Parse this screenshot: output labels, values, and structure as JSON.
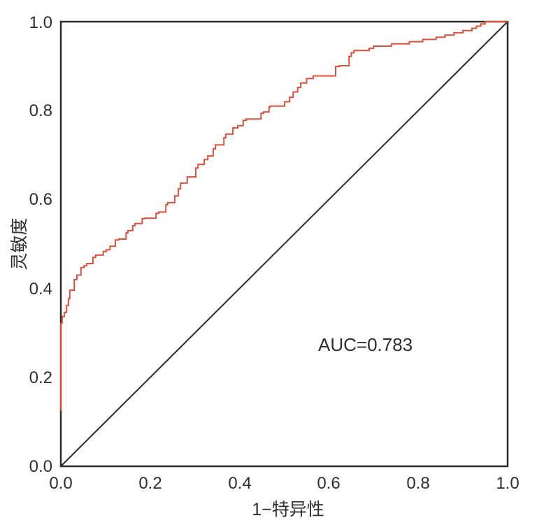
{
  "figure": {
    "background_color": "#ffffff",
    "axis_color": "#2a2a2a",
    "text_color": "#2e2e2e"
  },
  "chart_data": {
    "type": "line",
    "subtype": "roc-curve",
    "xlabel": "1−特异性",
    "ylabel": "灵敏度",
    "xlim": [
      0.0,
      1.0
    ],
    "ylim": [
      0.0,
      1.0
    ],
    "grid": false,
    "legend": "none",
    "x_tick_labels": [
      "0.0",
      "0.2",
      "0.4",
      "0.6",
      "0.8",
      "1.0"
    ],
    "y_tick_labels": [
      "0.0",
      "0.2",
      "0.4",
      "0.6",
      "0.8",
      "1.0"
    ],
    "x_ticks": [
      0.0,
      0.2,
      0.4,
      0.6,
      0.8,
      1.0
    ],
    "y_ticks": [
      0.0,
      0.2,
      0.4,
      0.6,
      0.8,
      1.0
    ],
    "annotation": {
      "text": "AUC=0.783",
      "x": 0.576,
      "y": 0.26
    },
    "auc_value": 0.783,
    "series": [
      {
        "name": "ROC curve",
        "color": "#e0513c",
        "line_width": 2,
        "step": true,
        "points": [
          [
            0.0,
            0.125
          ],
          [
            0.0,
            0.31
          ],
          [
            0.003,
            0.322
          ],
          [
            0.008,
            0.337
          ],
          [
            0.013,
            0.346
          ],
          [
            0.017,
            0.362
          ],
          [
            0.02,
            0.377
          ],
          [
            0.03,
            0.396
          ],
          [
            0.036,
            0.42
          ],
          [
            0.045,
            0.43
          ],
          [
            0.052,
            0.447
          ],
          [
            0.058,
            0.451
          ],
          [
            0.072,
            0.456
          ],
          [
            0.078,
            0.47
          ],
          [
            0.095,
            0.475
          ],
          [
            0.102,
            0.483
          ],
          [
            0.11,
            0.487
          ],
          [
            0.122,
            0.495
          ],
          [
            0.13,
            0.509
          ],
          [
            0.146,
            0.511
          ],
          [
            0.15,
            0.525
          ],
          [
            0.161,
            0.53
          ],
          [
            0.166,
            0.541
          ],
          [
            0.182,
            0.546
          ],
          [
            0.188,
            0.557
          ],
          [
            0.213,
            0.558
          ],
          [
            0.219,
            0.569
          ],
          [
            0.235,
            0.572
          ],
          [
            0.239,
            0.588
          ],
          [
            0.255,
            0.593
          ],
          [
            0.263,
            0.608
          ],
          [
            0.268,
            0.624
          ],
          [
            0.283,
            0.637
          ],
          [
            0.302,
            0.651
          ],
          [
            0.307,
            0.671
          ],
          [
            0.321,
            0.679
          ],
          [
            0.329,
            0.69
          ],
          [
            0.341,
            0.698
          ],
          [
            0.346,
            0.714
          ],
          [
            0.365,
            0.723
          ],
          [
            0.369,
            0.739
          ],
          [
            0.385,
            0.747
          ],
          [
            0.396,
            0.761
          ],
          [
            0.408,
            0.766
          ],
          [
            0.415,
            0.778
          ],
          [
            0.448,
            0.781
          ],
          [
            0.454,
            0.794
          ],
          [
            0.466,
            0.797
          ],
          [
            0.469,
            0.808
          ],
          [
            0.501,
            0.81
          ],
          [
            0.512,
            0.82
          ],
          [
            0.52,
            0.83
          ],
          [
            0.53,
            0.842
          ],
          [
            0.537,
            0.852
          ],
          [
            0.55,
            0.862
          ],
          [
            0.565,
            0.872
          ],
          [
            0.615,
            0.878
          ],
          [
            0.623,
            0.899
          ],
          [
            0.645,
            0.901
          ],
          [
            0.65,
            0.922
          ],
          [
            0.656,
            0.93
          ],
          [
            0.69,
            0.935
          ],
          [
            0.7,
            0.94
          ],
          [
            0.74,
            0.945
          ],
          [
            0.78,
            0.95
          ],
          [
            0.81,
            0.955
          ],
          [
            0.84,
            0.96
          ],
          [
            0.86,
            0.965
          ],
          [
            0.88,
            0.97
          ],
          [
            0.9,
            0.975
          ],
          [
            0.92,
            0.98
          ],
          [
            0.93,
            0.985
          ],
          [
            0.94,
            0.99
          ],
          [
            0.95,
            0.995
          ],
          [
            0.96,
            1.0
          ],
          [
            1.0,
            1.0
          ]
        ]
      },
      {
        "name": "reference diagonal",
        "color": "#2a2a2a",
        "line_width": 2,
        "step": false,
        "points": [
          [
            0.0,
            0.0
          ],
          [
            1.0,
            1.0
          ]
        ]
      }
    ]
  }
}
